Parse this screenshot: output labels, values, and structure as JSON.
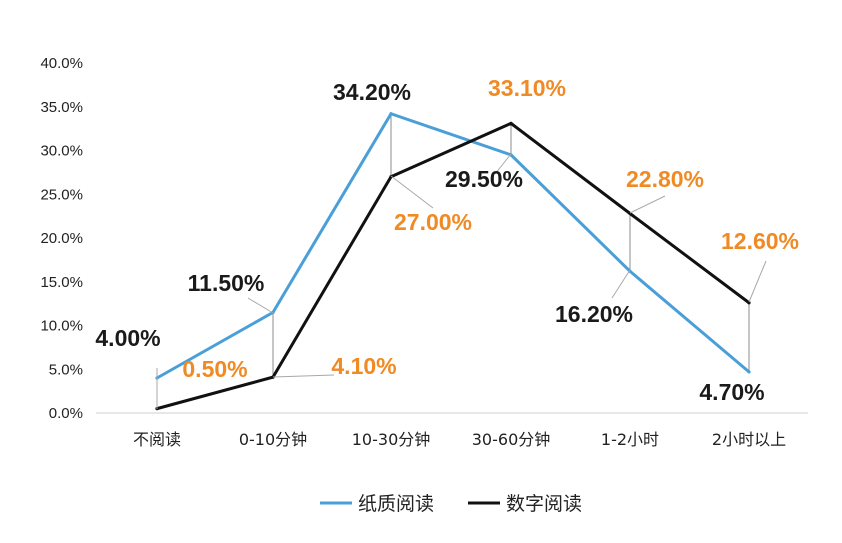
{
  "chart_data": {
    "type": "line",
    "categories": [
      "不阅读",
      "0-10分钟",
      "10-30分钟",
      "30-60分钟",
      "1-2小时",
      "2小时以上"
    ],
    "series": [
      {
        "name": "纸质阅读",
        "color": "#4a9fd8",
        "label_color": "#1a1a1a",
        "values": [
          4.0,
          11.5,
          34.2,
          29.5,
          16.2,
          4.7
        ],
        "labels": [
          "4.00%",
          "11.50%",
          "34.20%",
          "29.50%",
          "16.20%",
          "4.70%"
        ]
      },
      {
        "name": "数字阅读",
        "color": "#111111",
        "label_color": "#f08a24",
        "values": [
          0.5,
          4.1,
          27.0,
          33.1,
          22.8,
          12.6
        ],
        "labels": [
          "0.50%",
          "4.10%",
          "27.00%",
          "33.10%",
          "22.80%",
          "12.60%"
        ]
      }
    ],
    "ylim": [
      0,
      40
    ],
    "yticks": [
      "0.0%",
      "5.0%",
      "10.0%",
      "15.0%",
      "20.0%",
      "25.0%",
      "30.0%",
      "35.0%",
      "40.0%"
    ],
    "xlabel": "",
    "ylabel": "",
    "title": "",
    "grid": false,
    "legend_position": "bottom"
  }
}
